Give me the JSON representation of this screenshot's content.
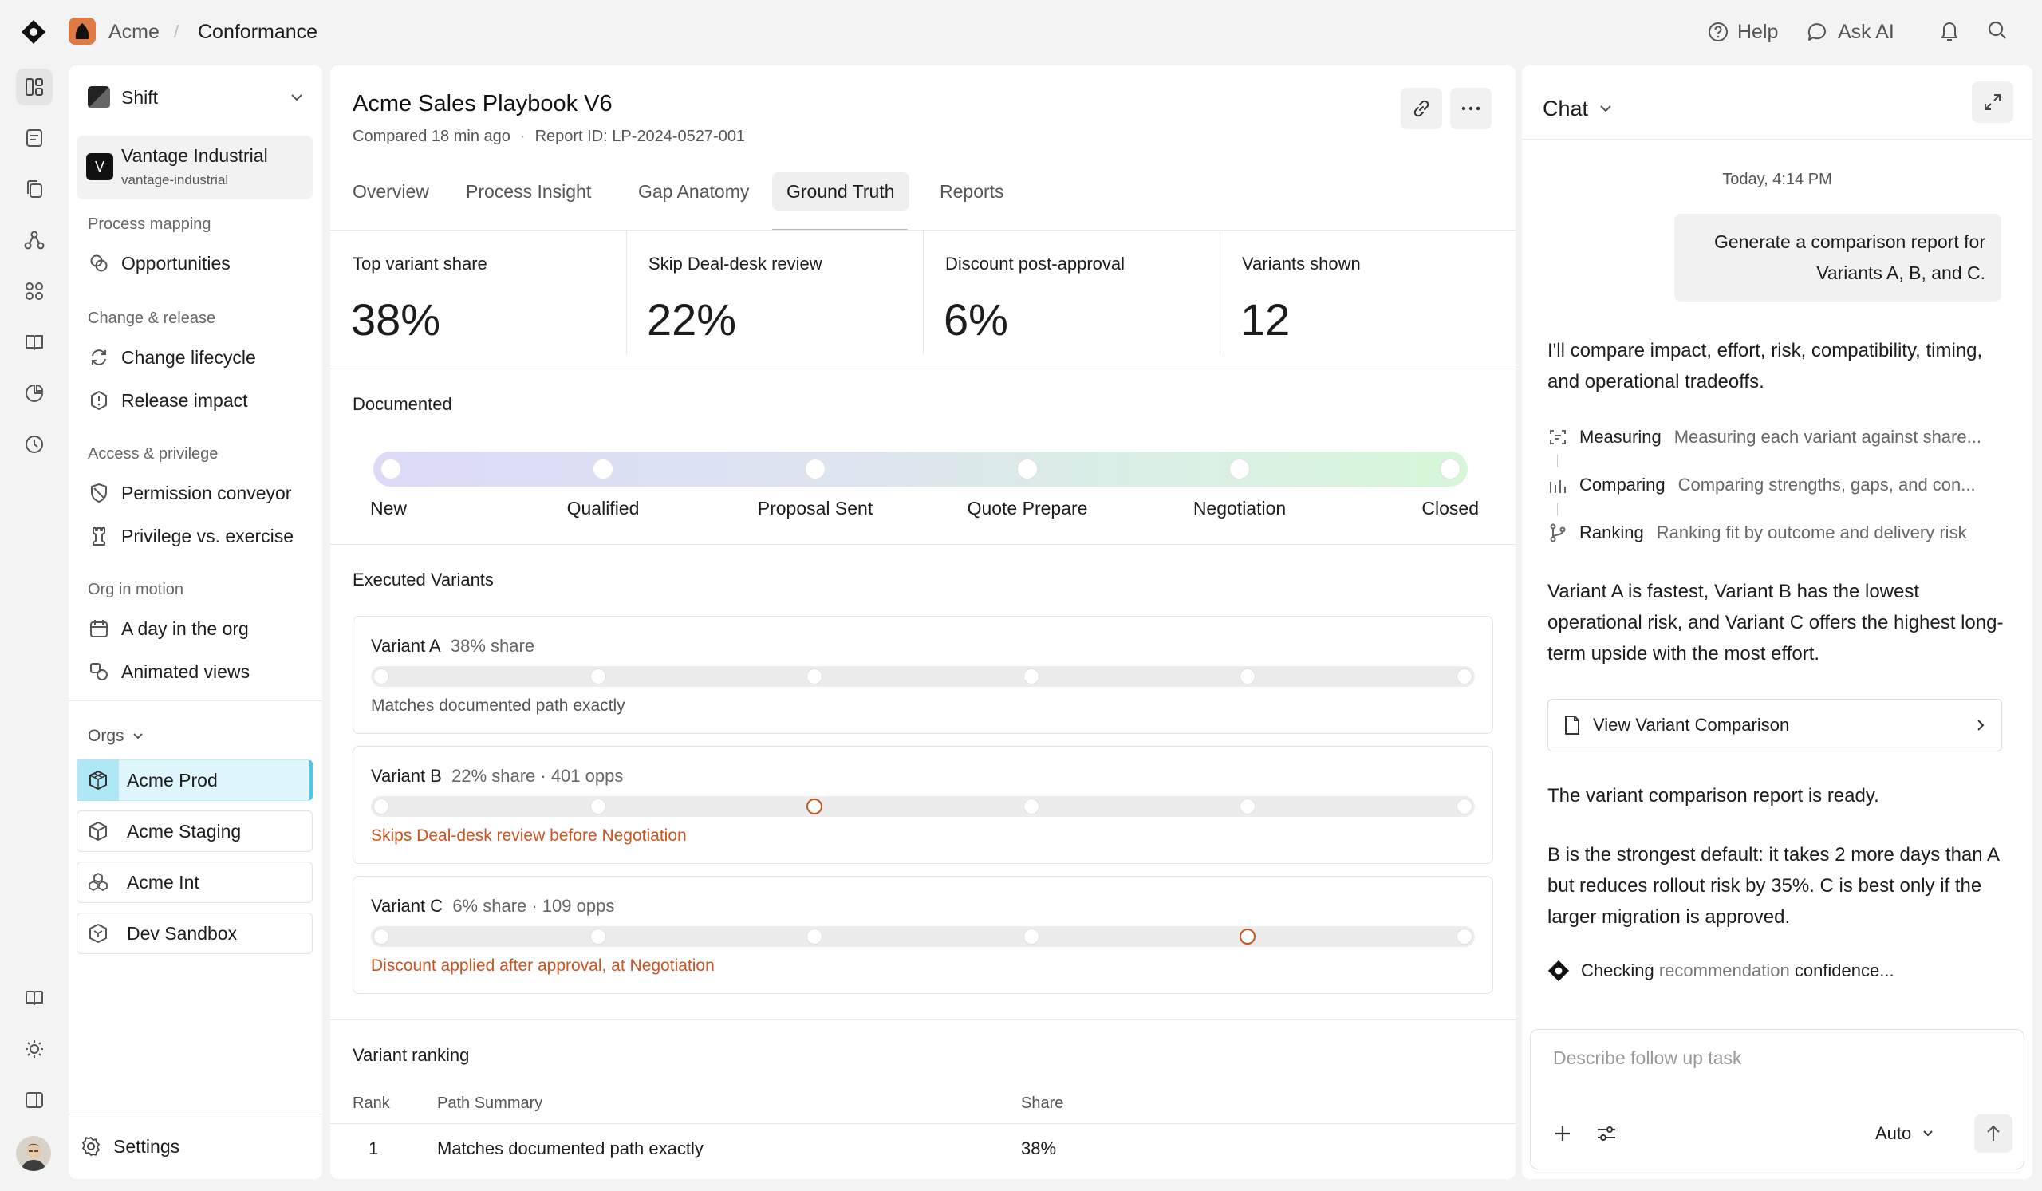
{
  "topbar": {
    "org": "Acme",
    "separator": "/",
    "page": "Conformance",
    "help": "Help",
    "ask_ai": "Ask AI"
  },
  "sidebar": {
    "workspace": "Shift",
    "account": {
      "initial": "V",
      "name": "Vantage Industrial",
      "slug": "vantage-industrial"
    },
    "sections": [
      {
        "title": "Process mapping",
        "items": [
          "Opportunities"
        ]
      },
      {
        "title": "Change & release",
        "items": [
          "Change lifecycle",
          "Release impact"
        ]
      },
      {
        "title": "Access & privilege",
        "items": [
          "Permission conveyor",
          "Privilege vs. exercise"
        ]
      },
      {
        "title": "Org in motion",
        "items": [
          "A day in the org",
          "Animated views"
        ]
      }
    ],
    "orgs_label": "Orgs",
    "orgs": [
      "Acme Prod",
      "Acme Staging",
      "Acme Int",
      "Dev Sandbox"
    ],
    "settings": "Settings"
  },
  "main": {
    "title": "Acme Sales Playbook V6",
    "compared": "Compared 18 min ago",
    "dot": "·",
    "report_id": "Report ID: LP-2024-0527-001",
    "tabs": [
      "Overview",
      "Process Insight",
      "Gap Anatomy",
      "Ground Truth",
      "Reports"
    ],
    "active_tab": "Ground Truth",
    "kpis": [
      {
        "label": "Top variant share",
        "value": "38%"
      },
      {
        "label": "Skip Deal-desk review",
        "value": "22%"
      },
      {
        "label": "Discount post-approval",
        "value": "6%"
      },
      {
        "label": "Variants shown",
        "value": "12"
      }
    ],
    "documented_title": "Documented",
    "stages": [
      "New",
      "Qualified",
      "Proposal Sent",
      "Quote Prepare",
      "Negotiation",
      "Closed"
    ],
    "executed_title": "Executed Variants",
    "variants": [
      {
        "name": "Variant A",
        "meta": "38% share",
        "note": "Matches documented path exactly",
        "deviation_stage": null
      },
      {
        "name": "Variant B",
        "meta": "22% share · 401 opps",
        "note": "Skips Deal-desk review before Negotiation",
        "deviation_stage": 2
      },
      {
        "name": "Variant C",
        "meta": "6% share · 109 opps",
        "note": "Discount applied after approval, at Negotiation",
        "deviation_stage": 4
      }
    ],
    "ranking": {
      "title": "Variant ranking",
      "headers": [
        "Rank",
        "Path Summary",
        "Share"
      ],
      "rows": [
        [
          "1",
          "Matches documented path exactly",
          "38%"
        ]
      ]
    }
  },
  "chat": {
    "title": "Chat",
    "timestamp": "Today, 4:14 PM",
    "user_message": "Generate a comparison report for Variants A, B, and C.",
    "intro": "I'll compare impact, effort, risk, compatibility, timing, and operational tradeoffs.",
    "steps": [
      {
        "label": "Measuring",
        "detail": "Measuring each variant against share..."
      },
      {
        "label": "Comparing",
        "detail": "Comparing strengths, gaps, and con..."
      },
      {
        "label": "Ranking",
        "detail": "Ranking fit by outcome and delivery risk"
      }
    ],
    "summary": "Variant A is fastest, Variant B has the lowest operational risk, and Variant C offers the highest long-term upside with the most effort.",
    "link_card": "View Variant Comparison",
    "ready": "The variant comparison report is ready.",
    "recommendation": "B is the strongest default: it takes 2 more days than A but reduces rollout risk by 35%. C is best only if the larger migration is approved.",
    "status_prefix": "Checking ",
    "status_highlight": "recommendation",
    "status_suffix": " confidence...",
    "input_placeholder": "Describe follow up task",
    "mode": "Auto"
  },
  "colors": {
    "accent_orange": "#c9541f",
    "active_org_bg": "#dff6fc",
    "active_org_bar": "#4bc8e8",
    "gradient_start": "#dcdaf8",
    "gradient_end": "#d6f7d8"
  }
}
